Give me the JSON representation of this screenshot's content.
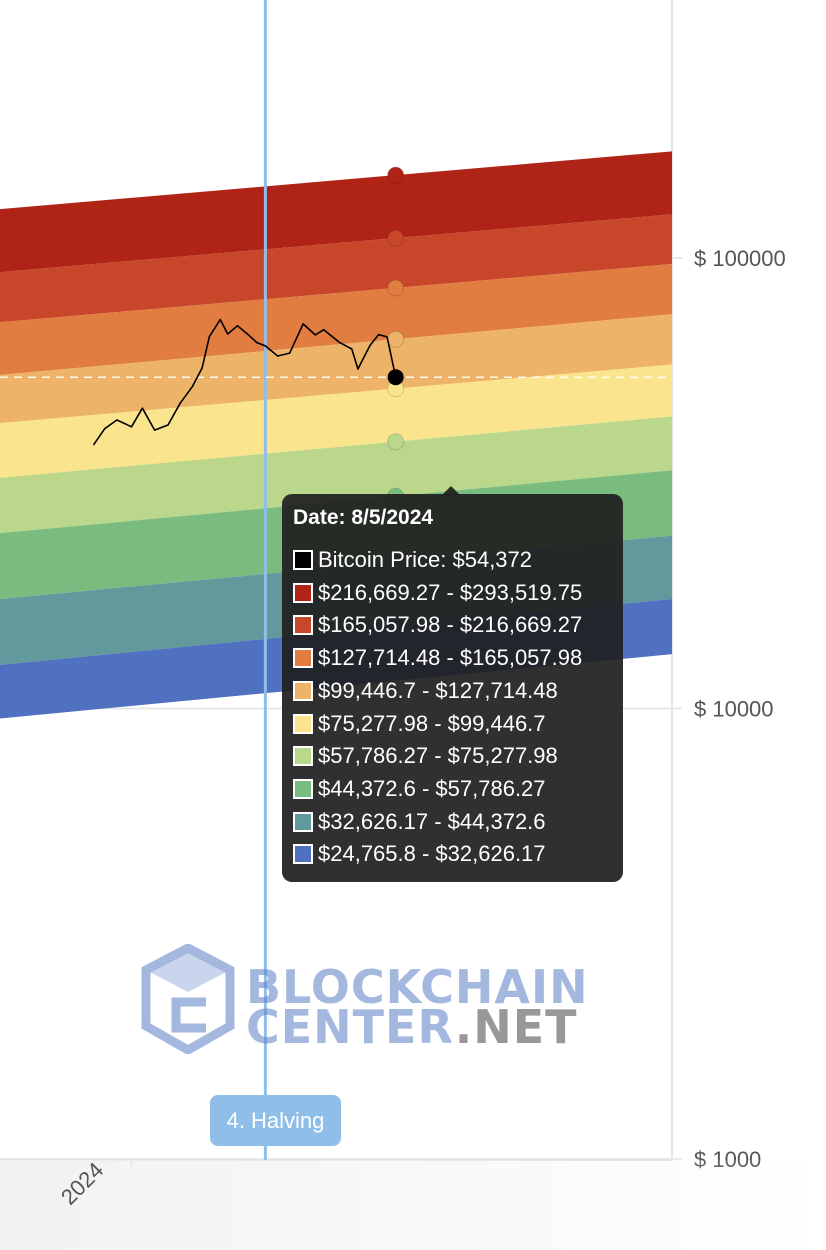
{
  "chart_data": {
    "type": "area",
    "title": "",
    "xlabel": "",
    "ylabel": "",
    "y_scale": "log",
    "ylim": [
      1000,
      140000
    ],
    "y_ticks": [
      {
        "value": 100000,
        "label": "$ 100000"
      },
      {
        "value": 10000,
        "label": "$ 10000"
      },
      {
        "value": 1000,
        "label": "$ 1000"
      }
    ],
    "x_ticks": [
      {
        "value": "2024-01-01",
        "label": "2024"
      }
    ],
    "x_range": [
      "2023-09-15",
      "2025-03-20"
    ],
    "bands": [
      {
        "name": "$216,669.27 - $293,519.75",
        "color": "#b02418",
        "low_start": 93000,
        "low_end": 125000
      },
      {
        "name": "$165,057.98 - $216,669.27",
        "color": "#c8462a",
        "low_start": 72000,
        "low_end": 97000
      },
      {
        "name": "$127,714.48 - $165,057.98",
        "color": "#e17d40",
        "low_start": 55000,
        "low_end": 75000
      },
      {
        "name": "$99,446.7 - $127,714.48",
        "color": "#edb469",
        "low_start": 43000,
        "low_end": 58000
      },
      {
        "name": "$75,277.98 - $99,446.7",
        "color": "#fbe48e",
        "low_start": 32500,
        "low_end": 44500
      },
      {
        "name": "$57,786.27 - $75,277.98",
        "color": "#bbd78c",
        "low_start": 24500,
        "low_end": 33800
      },
      {
        "name": "$44,372.6 - $57,786.27",
        "color": "#7abc80",
        "low_start": 17500,
        "low_end": 24200
      },
      {
        "name": "$32,626.17 - $44,372.6",
        "color": "#62999c",
        "low_start": 12500,
        "low_end": 17500
      },
      {
        "name": "$24,765.8 - $32,626.17",
        "color": "#4f71bf",
        "low_start": 9500,
        "low_end": 13200
      }
    ],
    "series": [
      {
        "name": "Bitcoin Price",
        "color": "#000000",
        "x": [
          "2023-12-01",
          "2023-12-10",
          "2023-12-20",
          "2024-01-01",
          "2024-01-10",
          "2024-01-20",
          "2024-01-31",
          "2024-02-10",
          "2024-02-20",
          "2024-02-28",
          "2024-03-05",
          "2024-03-14",
          "2024-03-20",
          "2024-03-28",
          "2024-04-05",
          "2024-04-13",
          "2024-04-20",
          "2024-04-30",
          "2024-05-10",
          "2024-05-21",
          "2024-05-31",
          "2024-06-07",
          "2024-06-20",
          "2024-06-30",
          "2024-07-05",
          "2024-07-15",
          "2024-07-22",
          "2024-07-29",
          "2024-08-05"
        ],
        "y": [
          38500,
          41800,
          43700,
          42200,
          46400,
          41500,
          42600,
          47600,
          51800,
          57000,
          66900,
          73000,
          67800,
          70700,
          67900,
          64900,
          63800,
          60600,
          61500,
          71400,
          67500,
          69300,
          64900,
          62800,
          56700,
          64000,
          67600,
          66800,
          54372
        ]
      }
    ],
    "marker": {
      "date": "2024-08-05",
      "value": 54372
    },
    "reference_lines": [
      {
        "type": "vertical",
        "date": "2024-04-20",
        "label": "4. Halving"
      },
      {
        "type": "horizontal",
        "value": 54372,
        "style": "dashed"
      }
    ],
    "tooltip": {
      "title": "Date: 8/5/2024",
      "rows": [
        {
          "label": "Bitcoin Price: $54,372",
          "color": "#000000"
        },
        {
          "label": "$216,669.27 - $293,519.75",
          "color": "#b02418"
        },
        {
          "label": "$165,057.98 - $216,669.27",
          "color": "#c8462a"
        },
        {
          "label": "$127,714.48 - $165,057.98",
          "color": "#e17d40"
        },
        {
          "label": "$99,446.7 - $127,714.48",
          "color": "#edb469"
        },
        {
          "label": "$75,277.98 - $99,446.7",
          "color": "#fbe48e"
        },
        {
          "label": "$57,786.27 - $75,277.98",
          "color": "#bbd78c"
        },
        {
          "label": "$44,372.6 - $57,786.27",
          "color": "#7abc80"
        },
        {
          "label": "$32,626.17 - $44,372.6",
          "color": "#62999c"
        },
        {
          "label": "$24,765.8 - $32,626.17",
          "color": "#4f71bf"
        }
      ]
    }
  },
  "watermark": {
    "line1": "BLOCKCHAIN",
    "line2a": "CENTER",
    "line2b": ".NET"
  },
  "colors": {
    "grid": "#e3e3e3",
    "halving_line": "#8fbfe8",
    "watermark_blue": "#5b7ec4",
    "watermark_gray": "#444444"
  }
}
